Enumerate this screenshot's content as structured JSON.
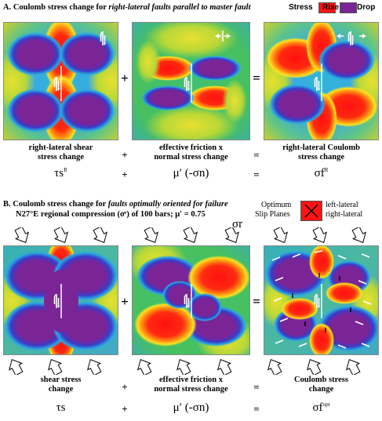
{
  "legend": {
    "title": "Stress",
    "rise_label": "Rise",
    "drop_label": "Drop",
    "rise_color": "#ff1414",
    "drop_color": "#7a2496"
  },
  "section_a": {
    "title_prefix": "A.  Coulomb stress change for ",
    "title_italic": "right-lateral faults parallel to master fault",
    "col1_line1": "right-lateral shear",
    "col1_line2": "stress change",
    "col2_line1": "effective friction  x",
    "col2_line2": "normal stress change",
    "col3_line1": "right-lateral Coulomb",
    "col3_line2": "stress change",
    "op_plus": "+",
    "op_equals": "=",
    "sym1": "τs",
    "sym1_sup": "R",
    "sym2": "μ′ (-σn)",
    "sym3": "σf",
    "sym3_sup": "R"
  },
  "section_b": {
    "title_prefix": "B.  Coulomb stress change for ",
    "title_italic": "faults optimally oriented for failure",
    "subtitle": "N27°E regional compression (σʳ) of 100 bars; μ′ = 0.75",
    "sigma_r_label": "σr",
    "inset_optimum": "Optimum",
    "inset_slip": "Slip Planes",
    "inset_left": "left-lateral",
    "inset_right": "right-lateral",
    "col1_line1": "shear stress",
    "col1_line2": "change",
    "col2_line1": "effective friction  x",
    "col2_line2": "normal stress change",
    "col3_line1": "Coulomb stress",
    "col3_line2": "change",
    "op_plus": "+",
    "op_equals": "=",
    "sym1": "τs",
    "sym2": "μ′ (-σn)",
    "sym3": "σf",
    "sym3_sup": "opt"
  }
}
